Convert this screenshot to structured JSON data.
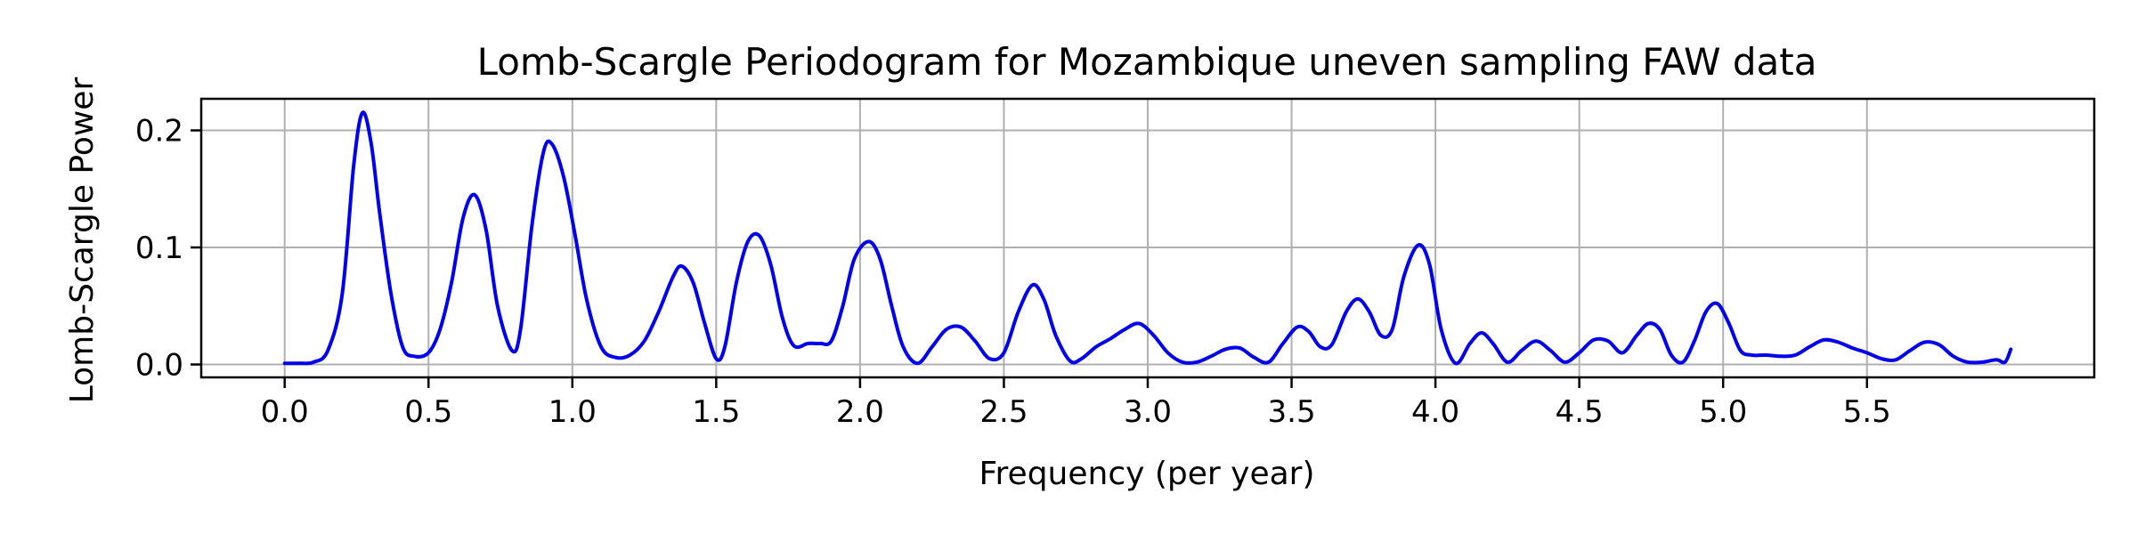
{
  "chart_data": {
    "type": "line",
    "title": "Lomb-Scargle Periodogram for Mozambique uneven sampling FAW data",
    "xlabel": "Frequency (per year)",
    "ylabel": "Lomb-Scargle Power",
    "xlim": [
      -0.29,
      6.29
    ],
    "ylim": [
      -0.011,
      0.227
    ],
    "xticks": [
      "0.0",
      "0.5",
      "1.0",
      "1.5",
      "2.0",
      "2.5",
      "3.0",
      "3.5",
      "4.0",
      "4.5",
      "5.0",
      "5.5"
    ],
    "yticks": [
      "0.0",
      "0.1",
      "0.2"
    ],
    "grid": true,
    "series": [
      {
        "color": "#0000ee",
        "points": [
          [
            0.0,
            0.001
          ],
          [
            0.05,
            0.001
          ],
          [
            0.1,
            0.002
          ],
          [
            0.15,
            0.012
          ],
          [
            0.2,
            0.06
          ],
          [
            0.24,
            0.17
          ],
          [
            0.27,
            0.215
          ],
          [
            0.3,
            0.19
          ],
          [
            0.33,
            0.13
          ],
          [
            0.37,
            0.06
          ],
          [
            0.41,
            0.015
          ],
          [
            0.45,
            0.007
          ],
          [
            0.5,
            0.01
          ],
          [
            0.54,
            0.03
          ],
          [
            0.58,
            0.07
          ],
          [
            0.62,
            0.125
          ],
          [
            0.66,
            0.145
          ],
          [
            0.7,
            0.115
          ],
          [
            0.74,
            0.05
          ],
          [
            0.79,
            0.012
          ],
          [
            0.82,
            0.03
          ],
          [
            0.86,
            0.12
          ],
          [
            0.9,
            0.182
          ],
          [
            0.93,
            0.188
          ],
          [
            0.97,
            0.16
          ],
          [
            1.01,
            0.11
          ],
          [
            1.05,
            0.055
          ],
          [
            1.1,
            0.015
          ],
          [
            1.15,
            0.006
          ],
          [
            1.2,
            0.008
          ],
          [
            1.25,
            0.02
          ],
          [
            1.3,
            0.045
          ],
          [
            1.35,
            0.075
          ],
          [
            1.38,
            0.084
          ],
          [
            1.42,
            0.07
          ],
          [
            1.46,
            0.035
          ],
          [
            1.5,
            0.005
          ],
          [
            1.53,
            0.015
          ],
          [
            1.57,
            0.07
          ],
          [
            1.61,
            0.105
          ],
          [
            1.65,
            0.11
          ],
          [
            1.69,
            0.085
          ],
          [
            1.73,
            0.04
          ],
          [
            1.77,
            0.016
          ],
          [
            1.82,
            0.018
          ],
          [
            1.86,
            0.018
          ],
          [
            1.9,
            0.02
          ],
          [
            1.94,
            0.05
          ],
          [
            1.98,
            0.09
          ],
          [
            2.03,
            0.105
          ],
          [
            2.07,
            0.09
          ],
          [
            2.11,
            0.05
          ],
          [
            2.15,
            0.015
          ],
          [
            2.2,
            0.001
          ],
          [
            2.25,
            0.015
          ],
          [
            2.3,
            0.03
          ],
          [
            2.35,
            0.032
          ],
          [
            2.4,
            0.02
          ],
          [
            2.45,
            0.005
          ],
          [
            2.5,
            0.01
          ],
          [
            2.55,
            0.045
          ],
          [
            2.6,
            0.068
          ],
          [
            2.64,
            0.055
          ],
          [
            2.68,
            0.025
          ],
          [
            2.73,
            0.003
          ],
          [
            2.77,
            0.005
          ],
          [
            2.82,
            0.015
          ],
          [
            2.87,
            0.022
          ],
          [
            2.92,
            0.03
          ],
          [
            2.97,
            0.035
          ],
          [
            3.02,
            0.025
          ],
          [
            3.07,
            0.01
          ],
          [
            3.12,
            0.002
          ],
          [
            3.17,
            0.002
          ],
          [
            3.22,
            0.007
          ],
          [
            3.27,
            0.013
          ],
          [
            3.32,
            0.014
          ],
          [
            3.37,
            0.006
          ],
          [
            3.42,
            0.002
          ],
          [
            3.47,
            0.018
          ],
          [
            3.52,
            0.032
          ],
          [
            3.56,
            0.028
          ],
          [
            3.6,
            0.015
          ],
          [
            3.64,
            0.017
          ],
          [
            3.69,
            0.045
          ],
          [
            3.73,
            0.056
          ],
          [
            3.77,
            0.045
          ],
          [
            3.81,
            0.025
          ],
          [
            3.85,
            0.03
          ],
          [
            3.89,
            0.075
          ],
          [
            3.94,
            0.102
          ],
          [
            3.98,
            0.085
          ],
          [
            4.02,
            0.03
          ],
          [
            4.07,
            0.001
          ],
          [
            4.12,
            0.018
          ],
          [
            4.16,
            0.027
          ],
          [
            4.2,
            0.018
          ],
          [
            4.25,
            0.002
          ],
          [
            4.3,
            0.012
          ],
          [
            4.35,
            0.02
          ],
          [
            4.4,
            0.012
          ],
          [
            4.45,
            0.002
          ],
          [
            4.5,
            0.01
          ],
          [
            4.55,
            0.021
          ],
          [
            4.6,
            0.02
          ],
          [
            4.65,
            0.01
          ],
          [
            4.7,
            0.025
          ],
          [
            4.74,
            0.035
          ],
          [
            4.78,
            0.03
          ],
          [
            4.82,
            0.008
          ],
          [
            4.86,
            0.002
          ],
          [
            4.9,
            0.02
          ],
          [
            4.94,
            0.045
          ],
          [
            4.98,
            0.052
          ],
          [
            5.02,
            0.035
          ],
          [
            5.06,
            0.012
          ],
          [
            5.1,
            0.008
          ],
          [
            5.15,
            0.008
          ],
          [
            5.2,
            0.007
          ],
          [
            5.25,
            0.008
          ],
          [
            5.3,
            0.015
          ],
          [
            5.35,
            0.021
          ],
          [
            5.4,
            0.019
          ],
          [
            5.45,
            0.014
          ],
          [
            5.5,
            0.01
          ],
          [
            5.55,
            0.005
          ],
          [
            5.6,
            0.004
          ],
          [
            5.65,
            0.012
          ],
          [
            5.7,
            0.019
          ],
          [
            5.75,
            0.017
          ],
          [
            5.8,
            0.007
          ],
          [
            5.85,
            0.002
          ],
          [
            5.9,
            0.002
          ],
          [
            5.95,
            0.004
          ],
          [
            5.98,
            0.002
          ],
          [
            6.0,
            0.013
          ]
        ]
      }
    ]
  }
}
